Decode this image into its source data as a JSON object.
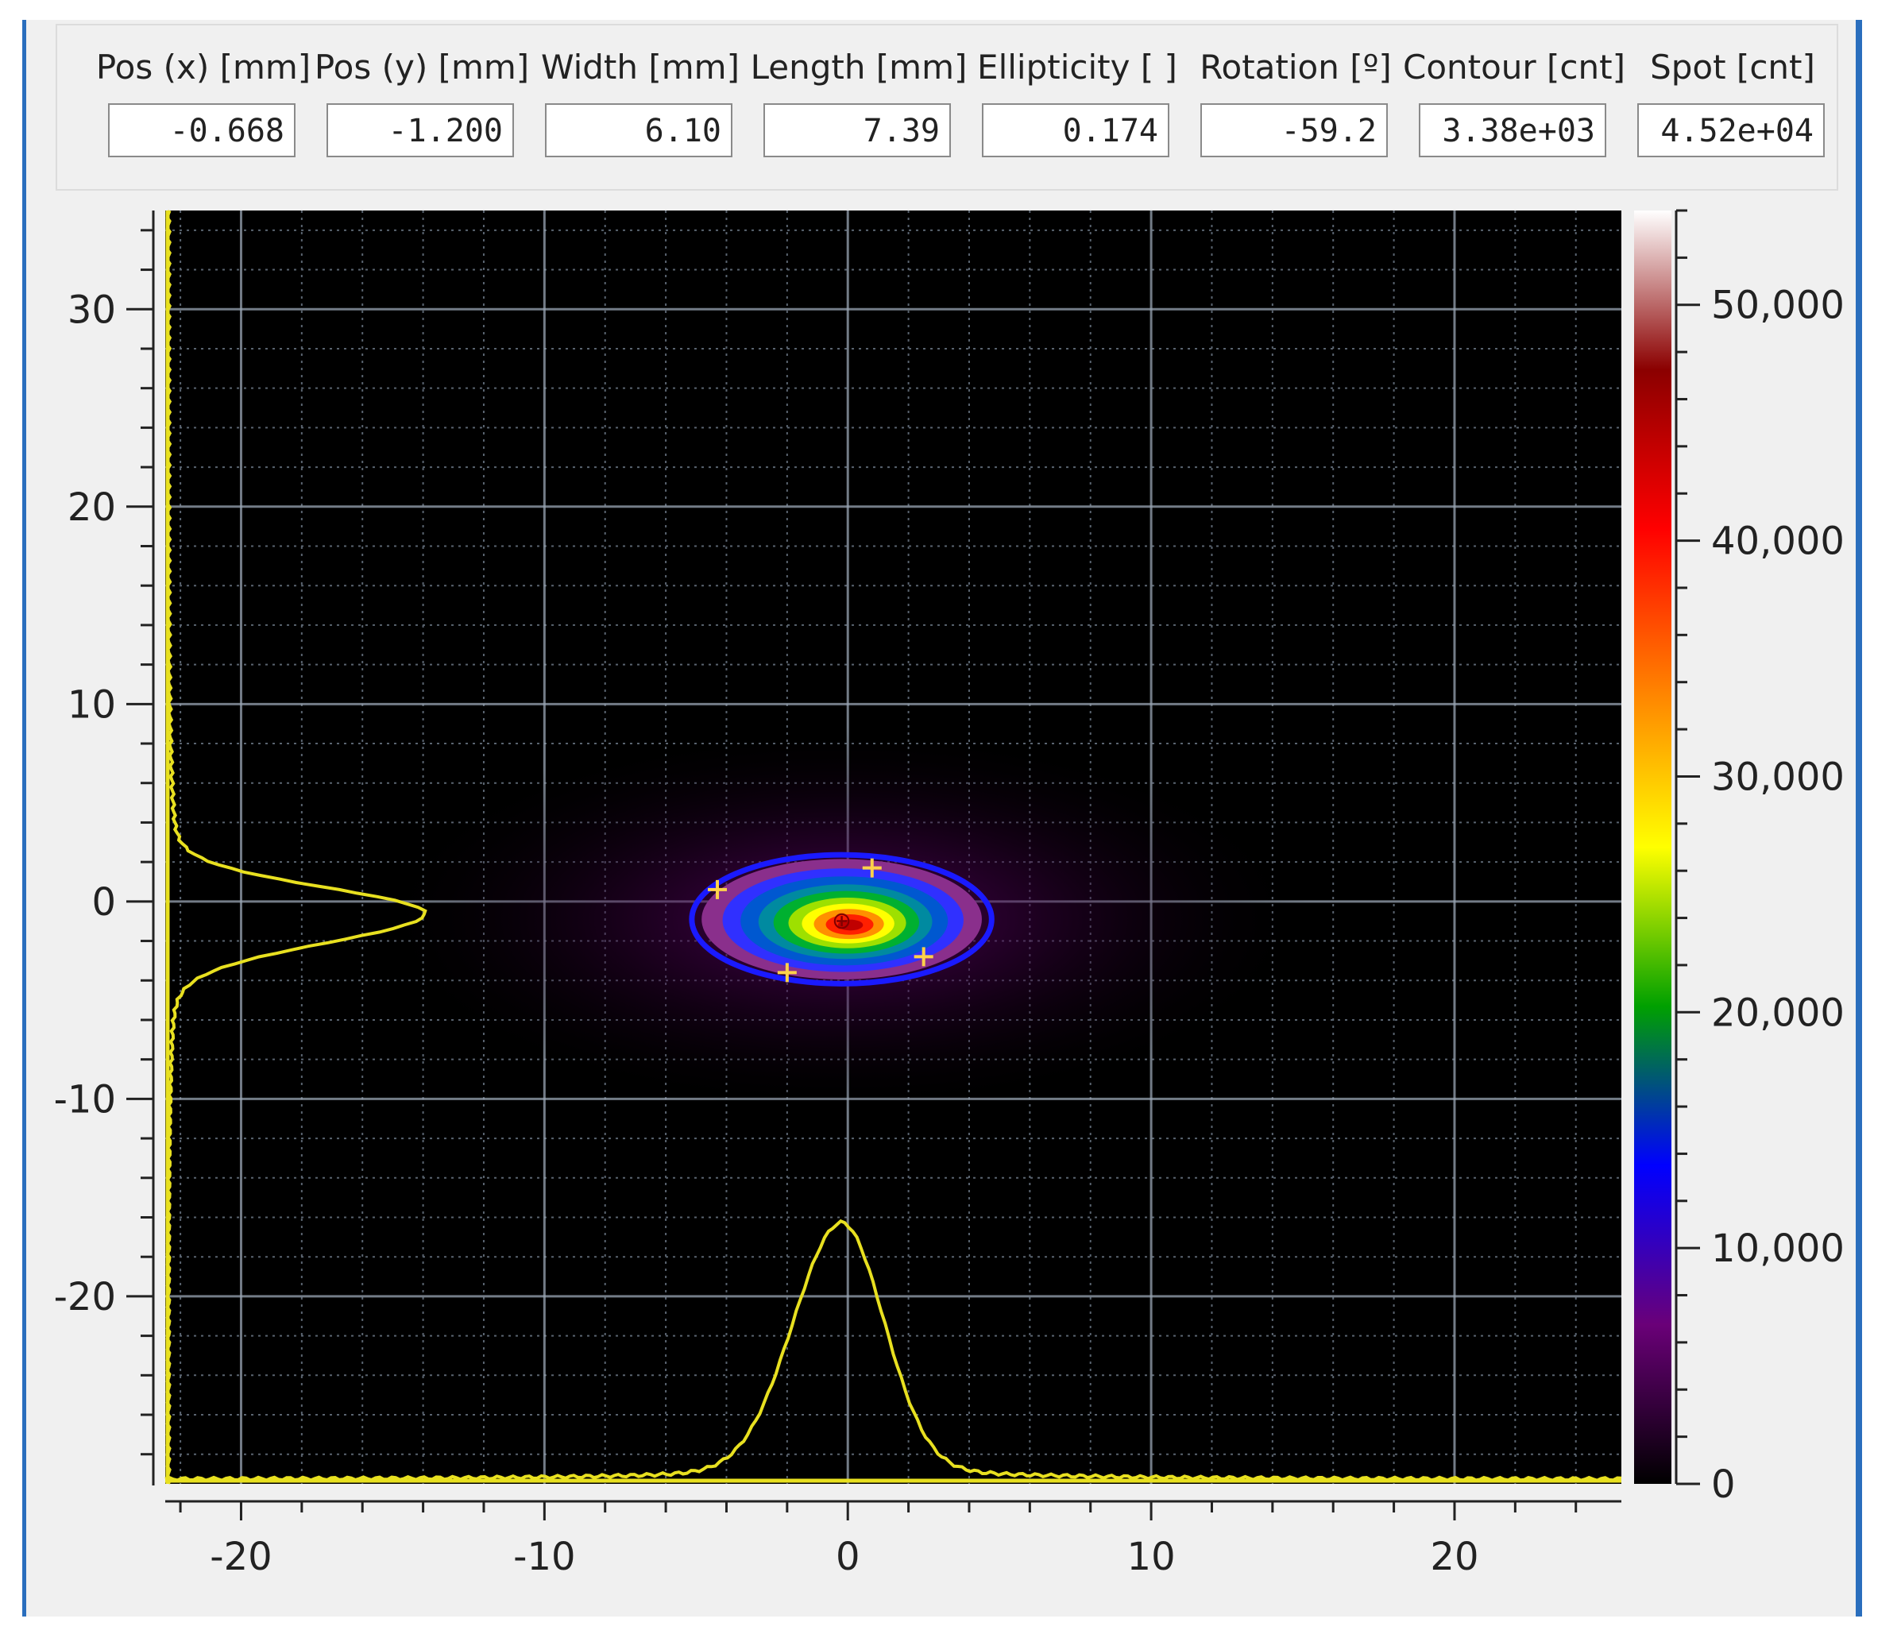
{
  "stats": [
    {
      "label": "Pos (x) [mm]",
      "value": "-0.668"
    },
    {
      "label": "Pos (y) [mm]",
      "value": "-1.200"
    },
    {
      "label": "Width [mm]",
      "value": "6.10"
    },
    {
      "label": "Length [mm]",
      "value": "7.39"
    },
    {
      "label": "Ellipticity [ ]",
      "value": "0.174"
    },
    {
      "label": "Rotation [º]",
      "value": "-59.2"
    },
    {
      "label": "Contour [cnt]",
      "value": "3.38e+03"
    },
    {
      "label": "Spot [cnt]",
      "value": "4.52e+04"
    }
  ],
  "chart_data": {
    "type": "heatmap",
    "xlim": [
      -22.5,
      25.5
    ],
    "ylim": [
      -29.5,
      35
    ],
    "x_ticks": [
      -20,
      -10,
      0,
      10,
      20
    ],
    "y_ticks": [
      30,
      20,
      10,
      0,
      -10,
      -20
    ],
    "x_tick_labels": [
      "-20",
      "-10",
      "0",
      "10",
      "20"
    ],
    "y_tick_labels": [
      "30",
      "20",
      "10",
      "0",
      "-10",
      "-20"
    ],
    "colorbar": {
      "range": [
        0,
        54000
      ],
      "ticks": [
        0,
        10000,
        20000,
        30000,
        40000,
        50000
      ],
      "tick_labels": [
        "0",
        "10,000",
        "20,000",
        "30,000",
        "40,000",
        "50,000"
      ],
      "colors": [
        "#000000",
        "#6a0078",
        "#0000ff",
        "#00a000",
        "#ffff00",
        "#ff8000",
        "#ff0000",
        "#8b0000",
        "#ffffff"
      ]
    },
    "grid": true,
    "spot": {
      "center_x": -0.2,
      "center_y": -0.9,
      "width_mm": 6.1,
      "length_mm": 7.39
    },
    "contour_color": "#1a1aff",
    "profile_color": "#e8e020",
    "x_profile_peak": -0.2,
    "y_profile_peak": -0.6
  }
}
